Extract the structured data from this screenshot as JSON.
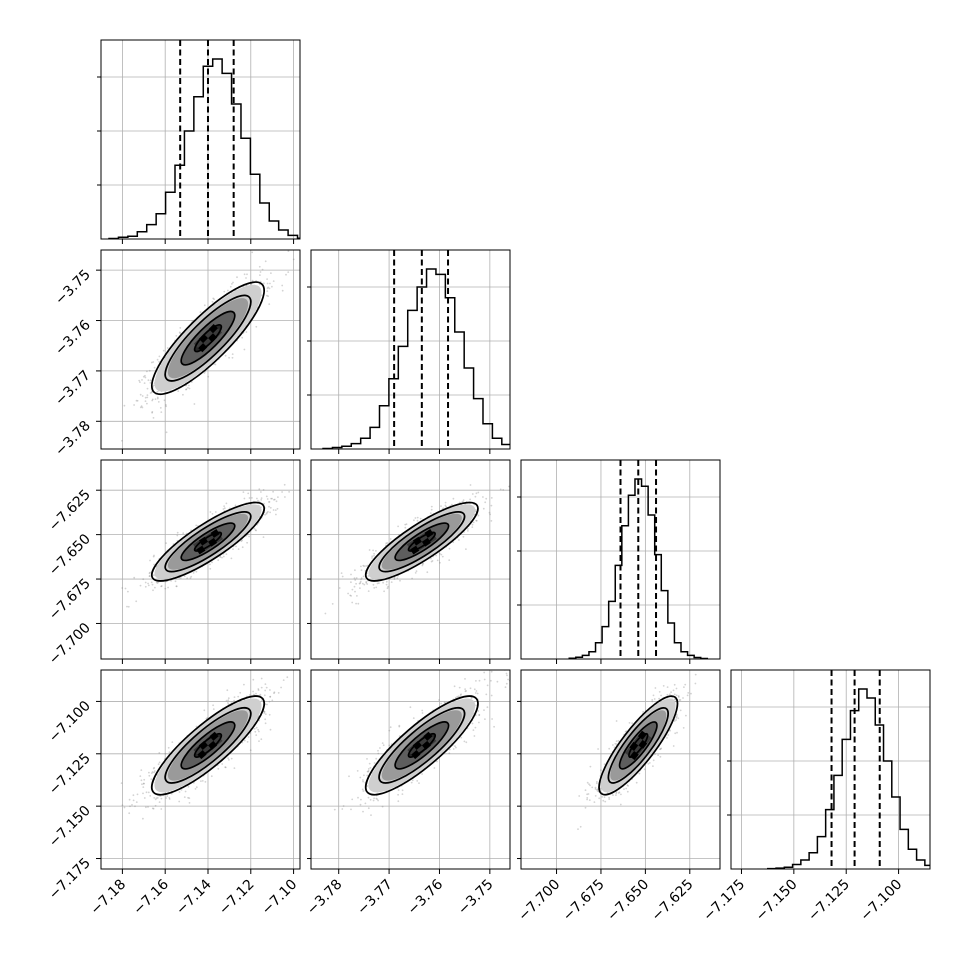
{
  "chart_data": {
    "type": "corner",
    "parameters": [
      {
        "ticks": [
          -7.18,
          -7.16,
          -7.14,
          -7.12,
          -7.1
        ],
        "tick_labels": [
          "−7.18",
          "−7.16",
          "−7.14",
          "−7.12",
          "−7.10"
        ],
        "range": [
          -7.19,
          -7.097
        ],
        "quantiles": [
          -7.153,
          -7.14,
          -7.128
        ],
        "median": -7.14,
        "sigma": 0.0125
      },
      {
        "ticks": [
          -3.78,
          -3.77,
          -3.76,
          -3.75
        ],
        "tick_labels": [
          "−3.78",
          "−3.77",
          "−3.76",
          "−3.75"
        ],
        "range": [
          -3.7855,
          -3.746
        ],
        "quantiles": [
          -3.769,
          -3.7635,
          -3.7583
        ],
        "median": -3.7635,
        "sigma": 0.0053
      },
      {
        "ticks": [
          -7.7,
          -7.675,
          -7.65,
          -7.625
        ],
        "tick_labels": [
          "−7.700",
          "−7.675",
          "−7.650",
          "−7.625"
        ],
        "range": [
          -7.72,
          -7.608
        ],
        "quantiles": [
          -7.664,
          -7.654,
          -7.644
        ],
        "median": -7.654,
        "sigma": 0.0105
      },
      {
        "ticks": [
          -7.175,
          -7.15,
          -7.125,
          -7.1
        ],
        "tick_labels": [
          "−7.175",
          "−7.150",
          "−7.125",
          "−7.100"
        ],
        "range": [
          -7.18,
          -7.085
        ],
        "quantiles": [
          -7.132,
          -7.121,
          -7.109
        ],
        "median": -7.121,
        "sigma": 0.0112
      }
    ],
    "correlation": 0.85,
    "histograms": [
      [
        0.003,
        0.01,
        0.015,
        0.04,
        0.08,
        0.14,
        0.26,
        0.41,
        0.6,
        0.79,
        0.96,
        1.0,
        0.92,
        0.75,
        0.56,
        0.36,
        0.2,
        0.1,
        0.05,
        0.02,
        0.004
      ],
      [
        0.003,
        0.008,
        0.015,
        0.03,
        0.06,
        0.12,
        0.24,
        0.39,
        0.57,
        0.77,
        0.9,
        1.0,
        0.97,
        0.84,
        0.65,
        0.45,
        0.28,
        0.14,
        0.06,
        0.025,
        0.01
      ],
      [
        0.004,
        0.01,
        0.02,
        0.04,
        0.09,
        0.18,
        0.32,
        0.52,
        0.74,
        0.91,
        1.0,
        0.96,
        0.8,
        0.58,
        0.38,
        0.2,
        0.09,
        0.04,
        0.02,
        0.008,
        0.003
      ],
      [
        0.002,
        0.005,
        0.01,
        0.025,
        0.05,
        0.09,
        0.18,
        0.33,
        0.52,
        0.72,
        0.88,
        1.0,
        0.95,
        0.8,
        0.6,
        0.4,
        0.22,
        0.11,
        0.05,
        0.02,
        0.01
      ]
    ],
    "contour_levels_sigma": [
      0.5,
      1.0,
      1.5,
      2.0
    ],
    "grid": true,
    "colors": {
      "points": "#808080",
      "contour": "#000000",
      "density_dark": "#000000"
    }
  }
}
